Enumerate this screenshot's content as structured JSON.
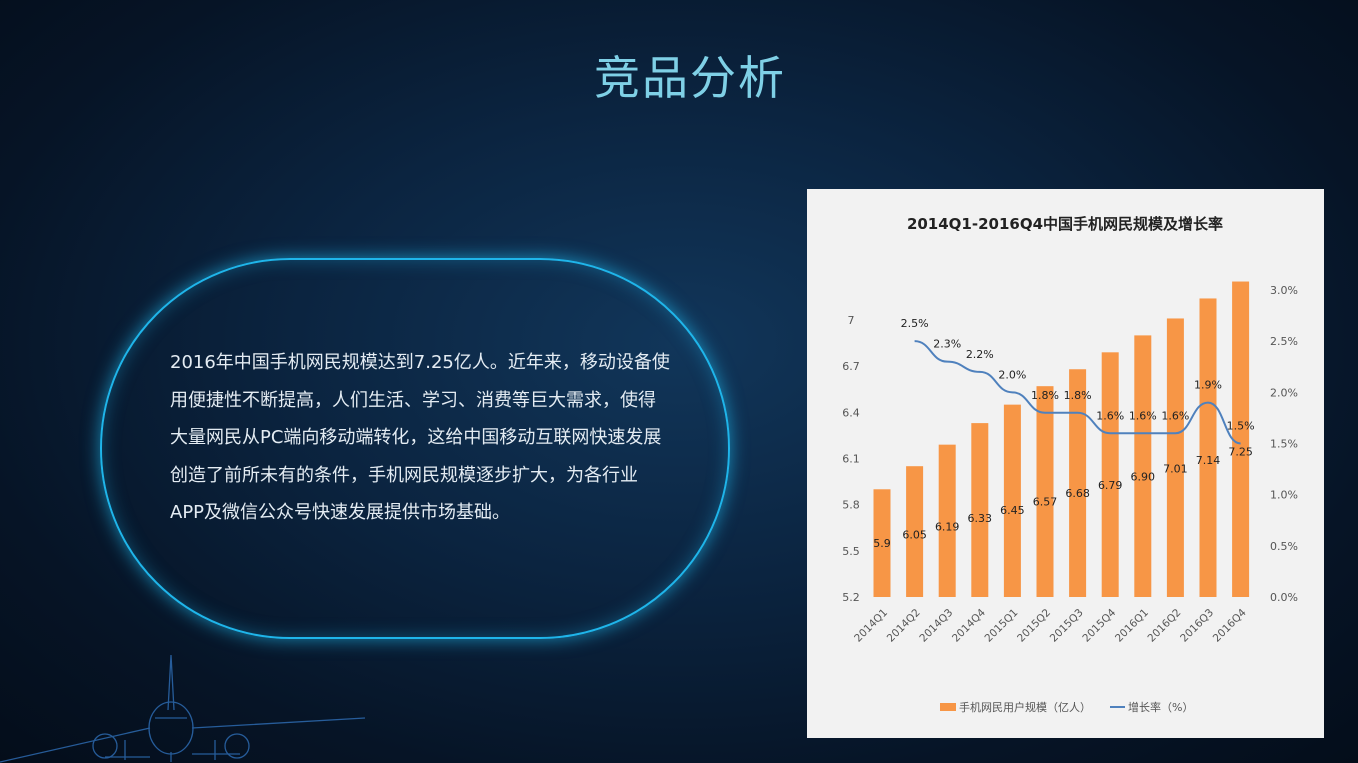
{
  "slide": {
    "title": "竞品分析",
    "description": "2016年中国手机网民规模达到7.25亿人。近年来，移动设备使用便捷性不断提高，人们生活、学习、消费等巨大需求，使得大量网民从PC端向移动端转化，这给中国移动互联网快速发展创造了前所未有的条件，手机网民规模逐步扩大，为各行业APP及微信公众号快速发展提供市场基础。"
  },
  "chart_data": {
    "type": "bar",
    "title": "2014Q1-2016Q4中国手机网民规模及增长率",
    "categories": [
      "2014Q1",
      "2014Q2",
      "2014Q3",
      "2014Q4",
      "2015Q1",
      "2015Q2",
      "2015Q3",
      "2015Q4",
      "2016Q1",
      "2016Q2",
      "2016Q3",
      "2016Q4"
    ],
    "series": [
      {
        "name": "手机网民用户规模（亿人）",
        "type": "bar",
        "axis": "left",
        "color": "#f79646",
        "values": [
          5.9,
          6.05,
          6.19,
          6.33,
          6.45,
          6.57,
          6.68,
          6.79,
          6.9,
          7.01,
          7.14,
          7.25
        ],
        "labels": [
          "5.9",
          "6.05",
          "6.19",
          "6.33",
          "6.45",
          "6.57",
          "6.68",
          "6.79",
          "6.90",
          "7.01",
          "7.14",
          "7.25"
        ]
      },
      {
        "name": "增长率（%）",
        "type": "line",
        "axis": "right",
        "color": "#4f81bd",
        "values": [
          null,
          2.5,
          2.3,
          2.2,
          2.0,
          1.8,
          1.8,
          1.6,
          1.6,
          1.6,
          1.9,
          1.5
        ],
        "labels": [
          "",
          "2.5%",
          "2.3%",
          "2.2%",
          "2.0%",
          "1.8%",
          "1.8%",
          "1.6%",
          "1.6%",
          "1.6%",
          "1.9%",
          "1.5%"
        ]
      }
    ],
    "y_left": {
      "ylim": [
        5.2,
        7.25
      ],
      "ticks": [
        "5.2",
        "5.5",
        "5.8",
        "6.1",
        "6.4",
        "6.7",
        "7"
      ],
      "tick_values": [
        5.2,
        5.5,
        5.8,
        6.1,
        6.4,
        6.7,
        7.0
      ]
    },
    "y_right": {
      "ylim": [
        0,
        3.0
      ],
      "ticks": [
        "0.0%",
        "0.5%",
        "1.0%",
        "1.5%",
        "2.0%",
        "2.5%",
        "3.0%"
      ],
      "tick_values": [
        0,
        0.5,
        1.0,
        1.5,
        2.0,
        2.5,
        3.0
      ]
    },
    "grid": false,
    "legend_position": "bottom"
  }
}
